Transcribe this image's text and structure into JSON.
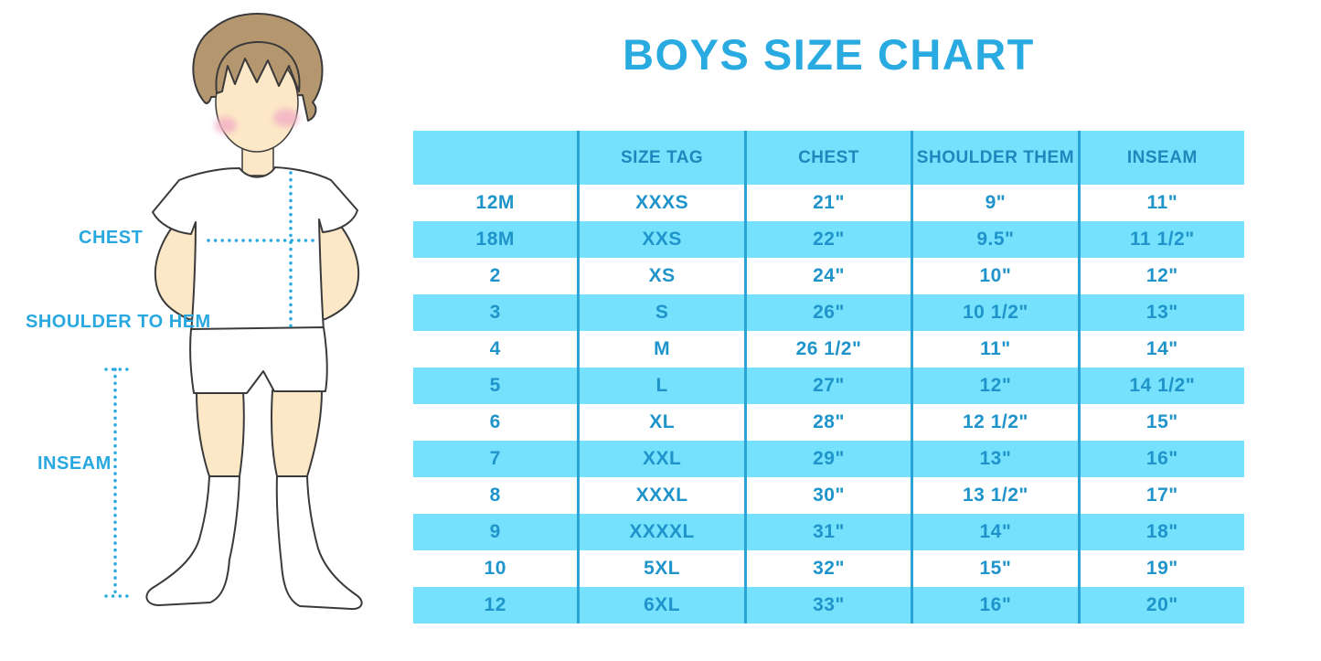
{
  "title": "BOYS SIZE CHART",
  "figure": {
    "labels": {
      "chest": "CHEST",
      "shoulder_to_hem": "SHOULDER TO HEM",
      "inseam": "INSEAM"
    }
  },
  "chart_data": {
    "type": "table",
    "title": "BOYS SIZE CHART",
    "columns": [
      "",
      "SIZE TAG",
      "CHEST",
      "SHOULDER THEM",
      "INSEAM"
    ],
    "rows": [
      [
        "12M",
        "XXXS",
        "21\"",
        "9\"",
        "11\""
      ],
      [
        "18M",
        "XXS",
        "22\"",
        "9.5\"",
        "11 1/2\""
      ],
      [
        "2",
        "XS",
        "24\"",
        "10\"",
        "12\""
      ],
      [
        "3",
        "S",
        "26\"",
        "10 1/2\"",
        "13\""
      ],
      [
        "4",
        "M",
        "26 1/2\"",
        "11\"",
        "14\""
      ],
      [
        "5",
        "L",
        "27\"",
        "12\"",
        "14 1/2\""
      ],
      [
        "6",
        "XL",
        "28\"",
        "12 1/2\"",
        "15\""
      ],
      [
        "7",
        "XXL",
        "29\"",
        "13\"",
        "16\""
      ],
      [
        "8",
        "XXXL",
        "30\"",
        "13 1/2\"",
        "17\""
      ],
      [
        "9",
        "XXXXL",
        "31\"",
        "14\"",
        "18\""
      ],
      [
        "10",
        "5XL",
        "32\"",
        "15\"",
        "19\""
      ],
      [
        "12",
        "6XL",
        "33\"",
        "16\"",
        "20\""
      ]
    ]
  },
  "colors": {
    "accent_blue": "#29ABE2",
    "row_blue": "#76E1FC",
    "divider_blue": "#2AA4D8",
    "header_text_blue": "#1E87BB",
    "cell_text_blue": "#1E94CB",
    "dotted_line_blue": "#2AA9E0",
    "skin": "#FCE8C6",
    "hair_brown": "#B5976F"
  }
}
